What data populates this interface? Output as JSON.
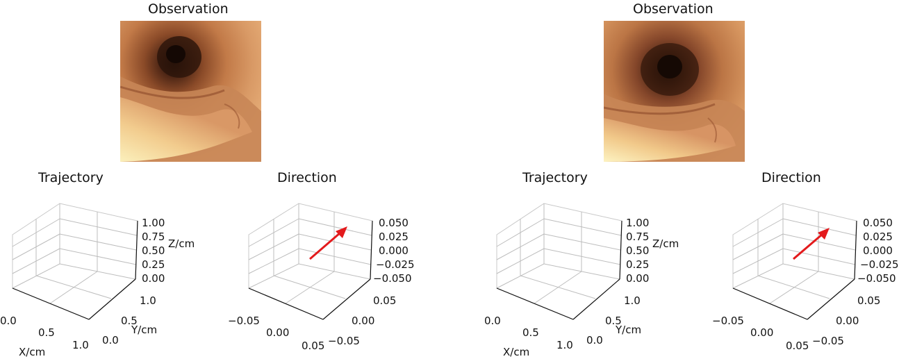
{
  "panels": [
    {
      "observation_title": "Observation",
      "trajectory": {
        "title": "Trajectory",
        "xlabel": "X/cm",
        "ylabel": "Y/cm",
        "zlabel": "Z/cm",
        "xticks": [
          "0.0",
          "0.5",
          "1.0"
        ],
        "yticks": [
          "0.0",
          "0.5",
          "1.0"
        ],
        "zticks": [
          "0.00",
          "0.25",
          "0.50",
          "0.75",
          "1.00"
        ]
      },
      "direction": {
        "title": "Direction",
        "xticks": [
          "−0.05",
          "0.00",
          "0.05"
        ],
        "yticks": [
          "−0.05",
          "0.00",
          "0.05"
        ],
        "zticks": [
          "−0.050",
          "−0.025",
          "0.000",
          "0.025",
          "0.050"
        ],
        "arrow_color": "#e31a1c"
      }
    },
    {
      "observation_title": "Observation",
      "trajectory": {
        "title": "Trajectory",
        "xlabel": "X/cm",
        "ylabel": "Y/cm",
        "zlabel": "Z/cm",
        "xticks": [
          "0.0",
          "0.5",
          "1.0"
        ],
        "yticks": [
          "0.0",
          "0.5",
          "1.0"
        ],
        "zticks": [
          "0.00",
          "0.25",
          "0.50",
          "0.75",
          "1.00"
        ]
      },
      "direction": {
        "title": "Direction",
        "xticks": [
          "−0.05",
          "0.00",
          "0.05"
        ],
        "yticks": [
          "−0.05",
          "0.00",
          "0.05"
        ],
        "zticks": [
          "−0.050",
          "−0.025",
          "0.000",
          "0.025",
          "0.050"
        ],
        "arrow_color": "#e31a1c"
      }
    }
  ],
  "chart_data": [
    {
      "type": "scatter",
      "title": "Trajectory",
      "xlabel": "X/cm",
      "ylabel": "Y/cm",
      "zlabel": "Z/cm",
      "xlim": [
        0,
        1
      ],
      "ylim": [
        0,
        1
      ],
      "zlim": [
        0,
        1
      ],
      "points": []
    },
    {
      "type": "scatter",
      "title": "Direction",
      "xlim": [
        -0.05,
        0.05
      ],
      "ylim": [
        -0.05,
        0.05
      ],
      "zlim": [
        -0.05,
        0.05
      ],
      "vector": {
        "start": [
          0,
          0,
          0
        ],
        "end": [
          0.03,
          0.03,
          0.05
        ]
      }
    },
    {
      "type": "scatter",
      "title": "Trajectory",
      "xlabel": "X/cm",
      "ylabel": "Y/cm",
      "zlabel": "Z/cm",
      "xlim": [
        0,
        1
      ],
      "ylim": [
        0,
        1
      ],
      "zlim": [
        0,
        1
      ],
      "points": []
    },
    {
      "type": "scatter",
      "title": "Direction",
      "xlim": [
        -0.05,
        0.05
      ],
      "ylim": [
        -0.05,
        0.05
      ],
      "zlim": [
        -0.05,
        0.05
      ],
      "vector": {
        "start": [
          0,
          0,
          0
        ],
        "end": [
          0.035,
          0.035,
          0.045
        ]
      }
    }
  ]
}
